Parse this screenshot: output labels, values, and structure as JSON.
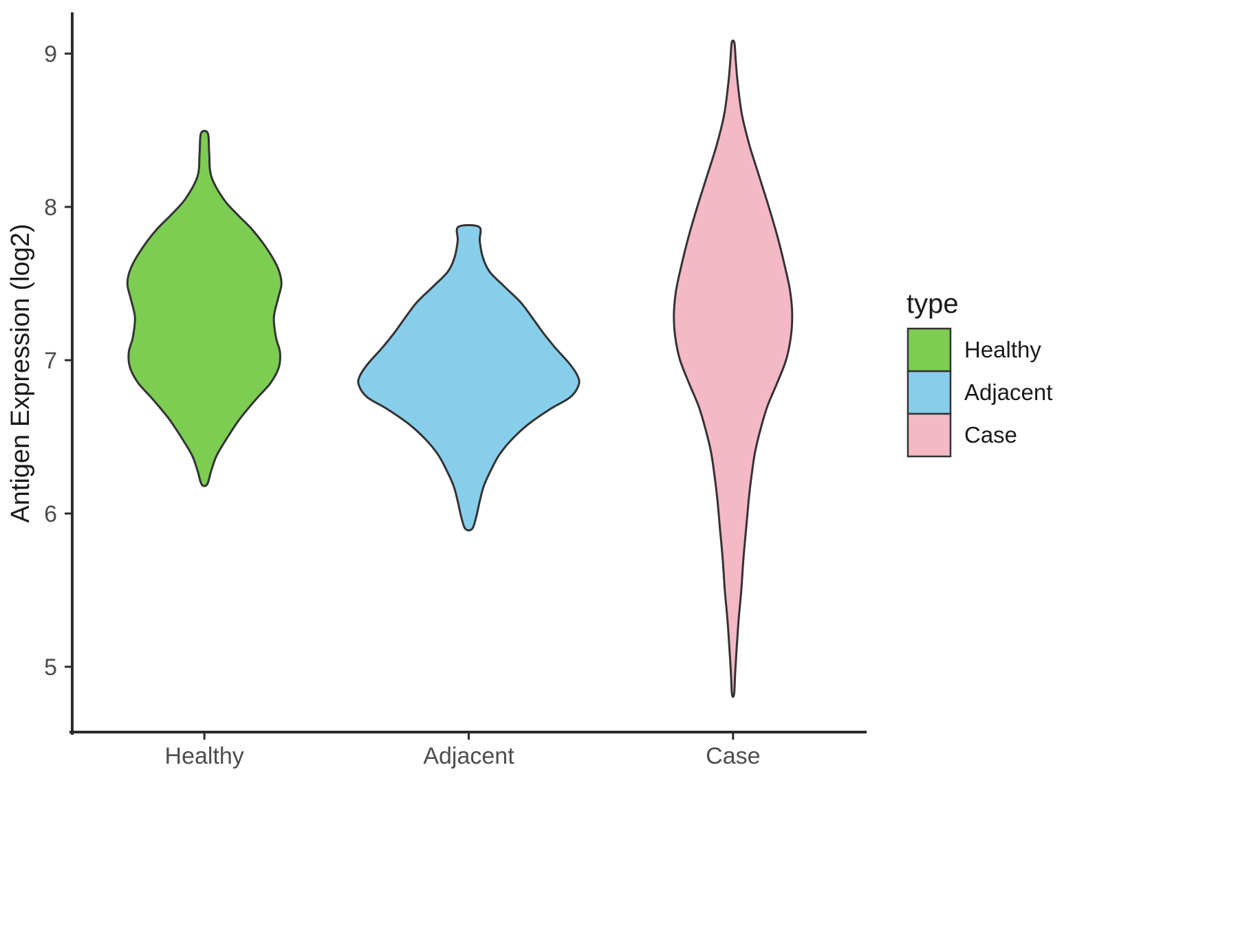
{
  "chart_data": {
    "type": "violin",
    "title": "",
    "xlabel": "",
    "ylabel": "Antigen Expression (log2)",
    "categories": [
      "Healthy",
      "Adjacent",
      "Case"
    ],
    "y_ticks": [
      5,
      6,
      7,
      8,
      9
    ],
    "y_domain": [
      4.57,
      9.26
    ],
    "grid": "off",
    "legend": {
      "title": "type",
      "position": "right",
      "entries": [
        {
          "label": "Healthy",
          "color": "#7CCD52"
        },
        {
          "label": "Adjacent",
          "color": "#87CEEB"
        },
        {
          "label": "Case",
          "color": "#F5B8C6"
        }
      ]
    },
    "style": {
      "stroke_color": "#333333",
      "stroke_width": 3,
      "axis_color": "#2b2b2b",
      "tick_label_color": "#4D4D4D",
      "title_color": "#1a1a1a",
      "background": "#ffffff"
    },
    "series": [
      {
        "name": "Healthy",
        "fill": "#7CCD52",
        "summary": {
          "min": 6.19,
          "max": 8.48,
          "mode": 7.5,
          "bimodal_bulges": [
            7.5,
            7.0
          ]
        },
        "profile": [
          [
            8.48,
            5
          ],
          [
            8.35,
            7
          ],
          [
            8.2,
            10
          ],
          [
            8.05,
            28
          ],
          [
            7.95,
            48
          ],
          [
            7.85,
            70
          ],
          [
            7.72,
            92
          ],
          [
            7.6,
            107
          ],
          [
            7.5,
            112
          ],
          [
            7.4,
            107
          ],
          [
            7.28,
            101
          ],
          [
            7.15,
            104
          ],
          [
            7.05,
            110
          ],
          [
            6.95,
            108
          ],
          [
            6.85,
            96
          ],
          [
            6.75,
            76
          ],
          [
            6.62,
            52
          ],
          [
            6.5,
            34
          ],
          [
            6.38,
            18
          ],
          [
            6.28,
            10
          ],
          [
            6.19,
            4
          ]
        ]
      },
      {
        "name": "Adjacent",
        "fill": "#87CEEB",
        "summary": {
          "min": 5.9,
          "max": 7.87,
          "mode": 6.87
        },
        "profile": [
          [
            7.87,
            15
          ],
          [
            7.78,
            16
          ],
          [
            7.68,
            20
          ],
          [
            7.58,
            30
          ],
          [
            7.48,
            52
          ],
          [
            7.38,
            75
          ],
          [
            7.28,
            92
          ],
          [
            7.18,
            108
          ],
          [
            7.08,
            126
          ],
          [
            6.98,
            146
          ],
          [
            6.9,
            158
          ],
          [
            6.84,
            160
          ],
          [
            6.76,
            148
          ],
          [
            6.68,
            118
          ],
          [
            6.58,
            86
          ],
          [
            6.48,
            62
          ],
          [
            6.38,
            44
          ],
          [
            6.28,
            32
          ],
          [
            6.18,
            22
          ],
          [
            6.08,
            16
          ],
          [
            5.98,
            11
          ],
          [
            5.9,
            5
          ]
        ]
      },
      {
        "name": "Case",
        "fill": "#F5B8C6",
        "summary": {
          "min": 4.82,
          "max": 9.07,
          "mode": 7.3,
          "note": "long thin lower tail"
        },
        "profile": [
          [
            9.07,
            2
          ],
          [
            8.95,
            4
          ],
          [
            8.8,
            7
          ],
          [
            8.6,
            13
          ],
          [
            8.4,
            24
          ],
          [
            8.2,
            38
          ],
          [
            8.0,
            52
          ],
          [
            7.8,
            65
          ],
          [
            7.6,
            76
          ],
          [
            7.45,
            83
          ],
          [
            7.3,
            86
          ],
          [
            7.15,
            84
          ],
          [
            7.0,
            77
          ],
          [
            6.85,
            64
          ],
          [
            6.7,
            50
          ],
          [
            6.55,
            40
          ],
          [
            6.4,
            32
          ],
          [
            6.25,
            27
          ],
          [
            6.1,
            23
          ],
          [
            5.9,
            19
          ],
          [
            5.7,
            15
          ],
          [
            5.5,
            12
          ],
          [
            5.3,
            8
          ],
          [
            5.1,
            5
          ],
          [
            4.95,
            3
          ],
          [
            4.82,
            1.5
          ]
        ]
      }
    ]
  }
}
